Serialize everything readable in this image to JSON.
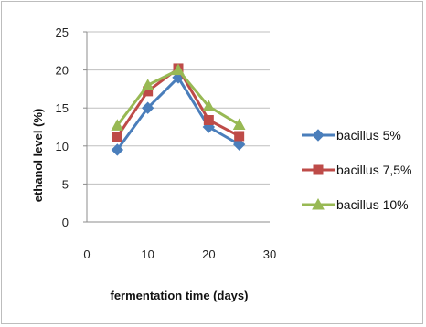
{
  "chart_data": {
    "type": "line",
    "xlabel": "fermentation time (days)",
    "ylabel": "ethanol level (%)",
    "xlim": [
      0,
      30
    ],
    "ylim": [
      0,
      25
    ],
    "xticks": [
      0,
      10,
      20,
      30
    ],
    "yticks": [
      0,
      5,
      10,
      15,
      20,
      25
    ],
    "grid": "horizontal",
    "legend_position": "right",
    "x": [
      5,
      10,
      15,
      20,
      25
    ],
    "series": [
      {
        "name": "bacillus 5%",
        "values": [
          9.5,
          15.0,
          19.0,
          12.5,
          10.2
        ],
        "color": "#4a7ebb",
        "marker": "diamond"
      },
      {
        "name": "bacillus 7,5%",
        "values": [
          11.2,
          17.2,
          20.2,
          13.4,
          11.3
        ],
        "color": "#be4b48",
        "marker": "square"
      },
      {
        "name": "bacillus 10%",
        "values": [
          12.7,
          18.0,
          20.0,
          15.2,
          12.8
        ],
        "color": "#98b954",
        "marker": "triangle"
      }
    ]
  }
}
